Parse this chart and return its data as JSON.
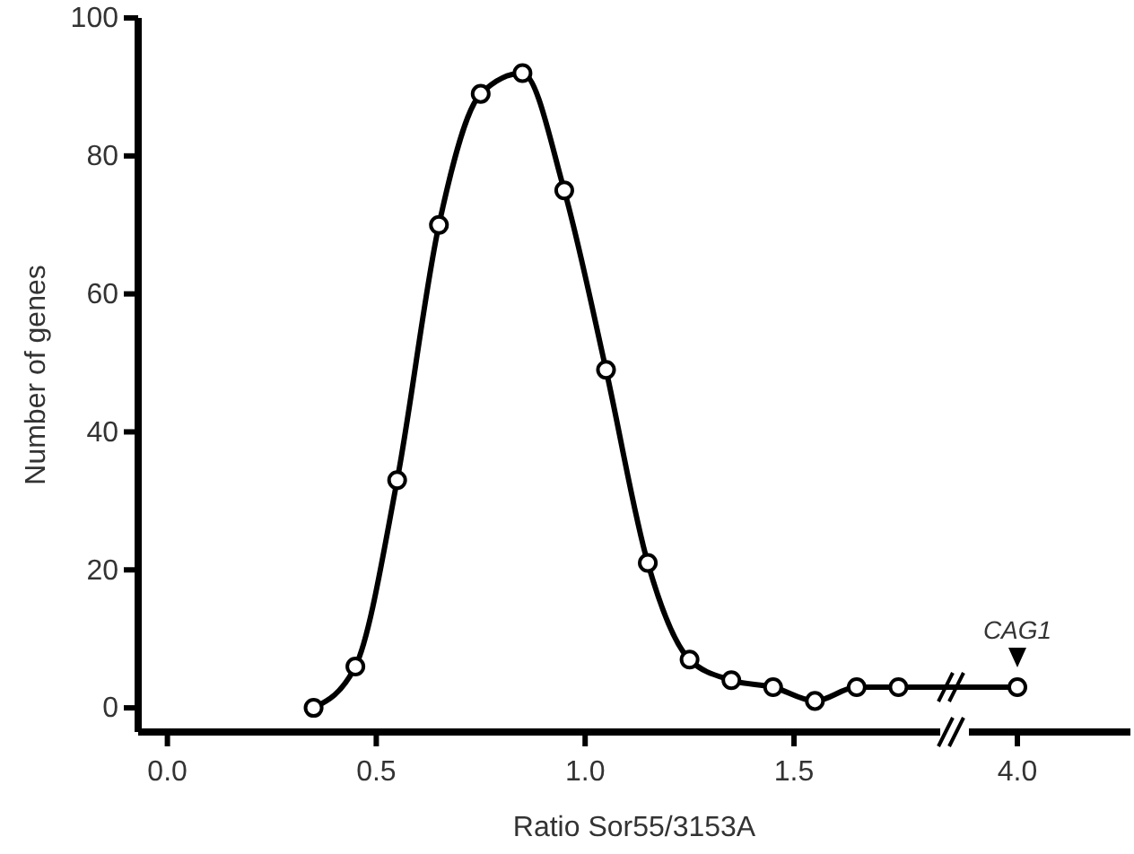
{
  "chart_data": [
    {
      "type": "line",
      "xlabel": "Ratio Sor55/3153A",
      "ylabel": "Number of genes",
      "x": [
        0.35,
        0.45,
        0.55,
        0.65,
        0.75,
        0.85,
        0.95,
        1.05,
        1.15,
        1.25,
        1.35,
        1.45,
        1.55,
        1.65,
        1.75
      ],
      "series": [
        {
          "color": "#000000",
          "values": [
            0,
            6,
            33,
            70,
            89,
            92,
            75,
            49,
            21,
            7,
            4,
            3,
            1,
            3,
            3
          ]
        }
      ],
      "xlim": [
        -0.07,
        1.85
      ],
      "xticks": [
        {
          "value": 0,
          "label": "0.0"
        },
        0.5,
        {
          "value": 1,
          "label": "1.0"
        },
        1.5
      ],
      "ylim": [
        -3.5,
        100
      ],
      "yticks": [
        0,
        20,
        40,
        60,
        80,
        100
      ],
      "marker": "circle",
      "line_style": "solid",
      "grid": false
    },
    {
      "type": "line",
      "categories": [
        "4.0"
      ],
      "series": [
        {
          "color": "#000000",
          "values": [
            3
          ]
        }
      ],
      "ylim": [
        -3.5,
        100
      ],
      "tick_labels": "x",
      "marker": "circle",
      "line_style": "solid",
      "grid": false,
      "annotations": [
        {
          "text": "CAG1",
          "x": "4.0",
          "y": 3
        }
      ]
    }
  ]
}
